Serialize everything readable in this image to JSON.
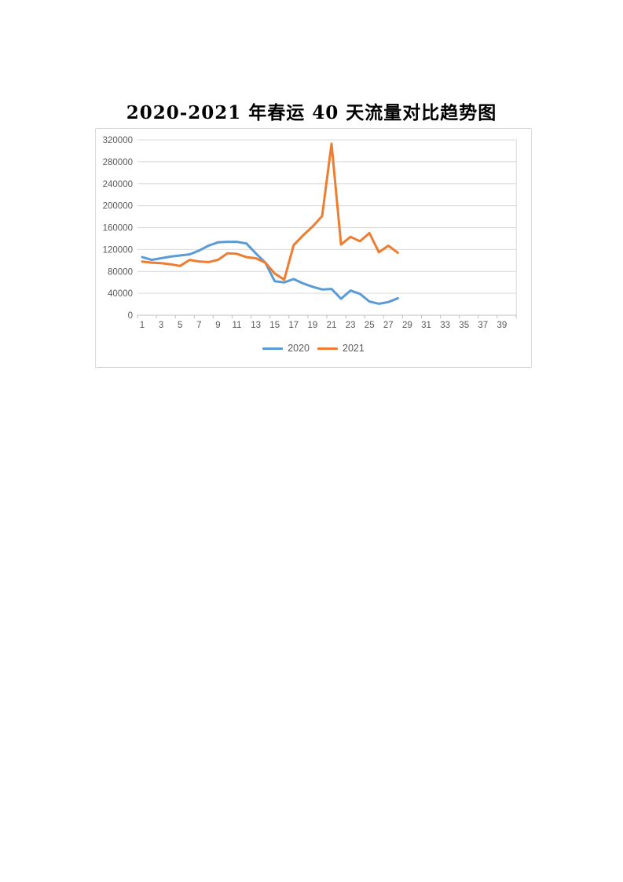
{
  "page": {
    "title": "2020-2021 年春运 40 天流量对比趋势图"
  },
  "chart_data": {
    "type": "line",
    "title": "2020-2021 年春运 40 天流量对比趋势图",
    "xlabel": "",
    "ylabel": "",
    "grid": true,
    "x_axis": {
      "tick_labels": [
        "1",
        "3",
        "5",
        "7",
        "9",
        "11",
        "13",
        "15",
        "17",
        "19",
        "21",
        "23",
        "25",
        "27",
        "29",
        "31",
        "33",
        "35",
        "37",
        "39"
      ],
      "categories_total": 40,
      "days_with_data": 28
    },
    "y_axis": {
      "min": 0,
      "max": 320000,
      "tick_step": 40000,
      "ticks": [
        0,
        40000,
        80000,
        120000,
        160000,
        200000,
        240000,
        280000,
        320000
      ]
    },
    "legend": {
      "position": "bottom",
      "entries": [
        "2020",
        "2021"
      ]
    },
    "series": [
      {
        "name": "2020",
        "color": "#5B9BD5",
        "x": [
          1,
          2,
          3,
          4,
          5,
          6,
          7,
          8,
          9,
          10,
          11,
          12,
          13,
          14,
          15,
          16,
          17,
          18,
          19,
          20,
          21,
          22,
          23,
          24,
          25,
          26,
          27,
          28
        ],
        "values": [
          106000,
          101000,
          104000,
          107000,
          109000,
          111000,
          118000,
          127000,
          133000,
          134000,
          134000,
          131000,
          113000,
          96000,
          62000,
          60000,
          66000,
          58000,
          52000,
          47000,
          48000,
          30000,
          45000,
          39000,
          25000,
          21000,
          24000,
          31000
        ]
      },
      {
        "name": "2021",
        "color": "#ED7D31",
        "x": [
          1,
          2,
          3,
          4,
          5,
          6,
          7,
          8,
          9,
          10,
          11,
          12,
          13,
          14,
          15,
          16,
          17,
          18,
          19,
          20,
          21,
          22,
          23,
          24,
          25,
          26,
          27,
          28
        ],
        "values": [
          98000,
          96000,
          95000,
          93000,
          90000,
          101000,
          98000,
          97000,
          101000,
          113000,
          112000,
          106000,
          104000,
          96000,
          76000,
          65000,
          128000,
          146000,
          162000,
          181000,
          313000,
          129000,
          143000,
          135000,
          150000,
          115000,
          127000,
          114000
        ]
      }
    ],
    "colors": {
      "grid": "#D9D9D9",
      "axis_line": "#BFBFBF",
      "axis_text": "#595959",
      "chart_border": "#D9D9D9"
    }
  }
}
